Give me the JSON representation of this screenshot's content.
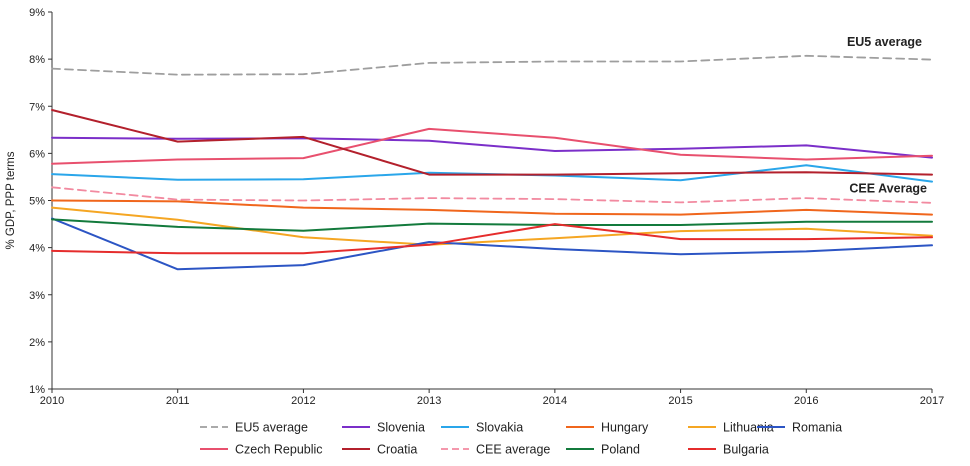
{
  "chart_data": {
    "type": "line",
    "ylabel": "% GDP, PPP terms",
    "xlabel": "",
    "x": [
      "2010",
      "2011",
      "2012",
      "2013",
      "2014",
      "2015",
      "2016",
      "2017"
    ],
    "ylim": [
      1,
      9
    ],
    "y_ticks": [
      "1%",
      "2%",
      "3%",
      "4%",
      "5%",
      "6%",
      "7%",
      "8%",
      "9%"
    ],
    "grid": false,
    "legend_position": "bottom",
    "annotations": [
      {
        "text": "EU5 average"
      },
      {
        "text": "CEE Average"
      }
    ],
    "series": [
      {
        "name": "EU5 average",
        "color": "#9e9e9e",
        "dash": true,
        "values": [
          7.8,
          7.67,
          7.68,
          7.92,
          7.95,
          7.95,
          8.07,
          7.99
        ]
      },
      {
        "name": "Slovenia",
        "color": "#7b2fc9",
        "dash": false,
        "values": [
          6.33,
          6.31,
          6.32,
          6.27,
          6.05,
          6.1,
          6.17,
          5.91
        ]
      },
      {
        "name": "Slovakia",
        "color": "#2aa6ea",
        "dash": false,
        "values": [
          5.56,
          5.44,
          5.45,
          5.59,
          5.53,
          5.43,
          5.75,
          5.4
        ]
      },
      {
        "name": "Hungary",
        "color": "#f0661c",
        "dash": false,
        "values": [
          5.0,
          4.98,
          4.85,
          4.8,
          4.72,
          4.7,
          4.8,
          4.7
        ]
      },
      {
        "name": "Lithuania",
        "color": "#f5a623",
        "dash": false,
        "values": [
          4.85,
          4.59,
          4.22,
          4.06,
          4.2,
          4.35,
          4.4,
          4.25
        ]
      },
      {
        "name": "Romania",
        "color": "#2c55c4",
        "dash": false,
        "values": [
          4.62,
          3.54,
          3.63,
          4.12,
          3.97,
          3.86,
          3.92,
          4.05
        ]
      },
      {
        "name": "Czech Republic",
        "color": "#e8506e",
        "dash": false,
        "values": [
          5.78,
          5.87,
          5.9,
          6.52,
          6.33,
          5.97,
          5.87,
          5.95
        ]
      },
      {
        "name": "Croatia",
        "color": "#b3202c",
        "dash": false,
        "values": [
          6.92,
          6.25,
          6.35,
          5.55,
          5.55,
          5.58,
          5.6,
          5.55
        ]
      },
      {
        "name": "CEE average",
        "color": "#f28aa0",
        "dash": true,
        "values": [
          5.28,
          5.02,
          5.0,
          5.05,
          5.03,
          4.96,
          5.05,
          4.95
        ]
      },
      {
        "name": "Poland",
        "color": "#137a3c",
        "dash": false,
        "values": [
          4.6,
          4.44,
          4.36,
          4.51,
          4.48,
          4.48,
          4.55,
          4.55
        ]
      },
      {
        "name": "Bulgaria",
        "color": "#e52c2c",
        "dash": false,
        "values": [
          3.93,
          3.88,
          3.88,
          4.06,
          4.5,
          4.18,
          4.18,
          4.22
        ]
      }
    ]
  }
}
